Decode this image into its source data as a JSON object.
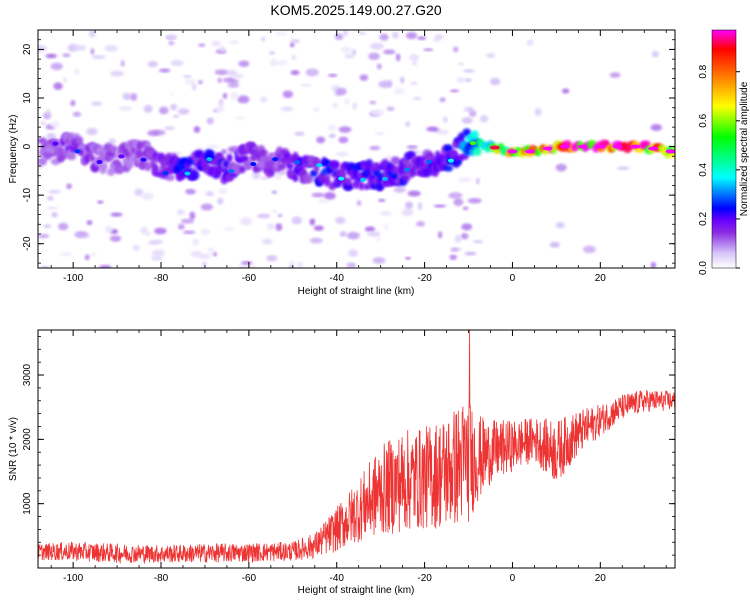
{
  "title": "KOM5.2025.149.00.27.G20",
  "chart_data": [
    {
      "type": "heatmap",
      "xlabel": "Height of straight line (km)",
      "ylabel": "Frequency (Hz)",
      "xlim": [
        -108,
        37
      ],
      "ylim": [
        -25,
        24
      ],
      "xticks": [
        -100,
        -80,
        -60,
        -40,
        -20,
        0,
        20
      ],
      "xtick_labels": [
        "-100",
        "-80",
        "-60",
        "-40",
        "-20",
        "0",
        "20"
      ],
      "yticks": [
        -20,
        -10,
        0,
        10,
        20
      ],
      "ytick_labels": [
        "-20",
        "-10",
        "0",
        "10",
        "20"
      ],
      "colorbar": {
        "label": "Normalized spectral amplitude",
        "range": [
          0,
          0.97
        ],
        "ticks": [
          0,
          0.2,
          0.4,
          0.6,
          0.8
        ],
        "tick_labels": [
          "0.0",
          "0.2",
          "0.4",
          "0.6",
          "0.8"
        ],
        "colormap": [
          "#ffffff",
          "#d8c8f8",
          "#8a2be2",
          "#6a00ff",
          "#0000ff",
          "#00ffff",
          "#00ff00",
          "#ffff00",
          "#ff8000",
          "#ff0000",
          "#ff00ff"
        ]
      },
      "ridge": {
        "x": [
          -105,
          -100,
          -95,
          -90,
          -85,
          -80,
          -75,
          -70,
          -65,
          -60,
          -55,
          -50,
          -45,
          -40,
          -35,
          -30,
          -25,
          -20,
          -15,
          -10,
          -5,
          0,
          5,
          10,
          15,
          20,
          25,
          30,
          35
        ],
        "frequency": [
          -1,
          0,
          -2,
          -3,
          -1,
          -4,
          -5,
          -3,
          -5,
          -2,
          -3,
          -4,
          -5,
          -6,
          -6,
          -6,
          -5,
          -3,
          -3,
          1,
          0,
          -1,
          -1,
          0,
          0,
          0,
          0,
          0,
          -1
        ],
        "amplitude": [
          0.12,
          0.18,
          0.14,
          0.12,
          0.14,
          0.16,
          0.22,
          0.22,
          0.2,
          0.16,
          0.16,
          0.18,
          0.22,
          0.24,
          0.22,
          0.22,
          0.2,
          0.18,
          0.22,
          0.32,
          0.55,
          0.75,
          0.85,
          0.9,
          0.92,
          0.95,
          0.95,
          0.93,
          0.7
        ]
      }
    },
    {
      "type": "line",
      "xlabel": "Height of straight line (km)",
      "ylabel": "SNR (10 * v/v)",
      "xlim": [
        -108,
        37
      ],
      "ylim": [
        0,
        3700
      ],
      "xticks": [
        -100,
        -80,
        -60,
        -40,
        -20,
        0,
        20
      ],
      "xtick_labels": [
        "-100",
        "-80",
        "-60",
        "-40",
        "-20",
        "0",
        "20"
      ],
      "yticks": [
        1000,
        2000,
        3000
      ],
      "ytick_labels": [
        "1000",
        "2000",
        "3000"
      ],
      "color": "#ee3333",
      "envelope": {
        "x": [
          -108,
          -100,
          -90,
          -80,
          -70,
          -60,
          -50,
          -45,
          -40,
          -35,
          -30,
          -25,
          -20,
          -15,
          -10,
          -8,
          -5,
          0,
          5,
          10,
          15,
          20,
          25,
          30,
          37
        ],
        "mean": [
          250,
          260,
          230,
          220,
          230,
          240,
          260,
          350,
          600,
          900,
          1200,
          1350,
          1400,
          1500,
          1700,
          1700,
          1800,
          1900,
          2000,
          1800,
          2100,
          2300,
          2500,
          2600,
          2600
        ],
        "amp": [
          130,
          150,
          150,
          140,
          150,
          150,
          150,
          200,
          350,
          500,
          700,
          800,
          800,
          900,
          1000,
          700,
          500,
          400,
          350,
          500,
          350,
          250,
          200,
          180,
          150
        ]
      }
    }
  ]
}
